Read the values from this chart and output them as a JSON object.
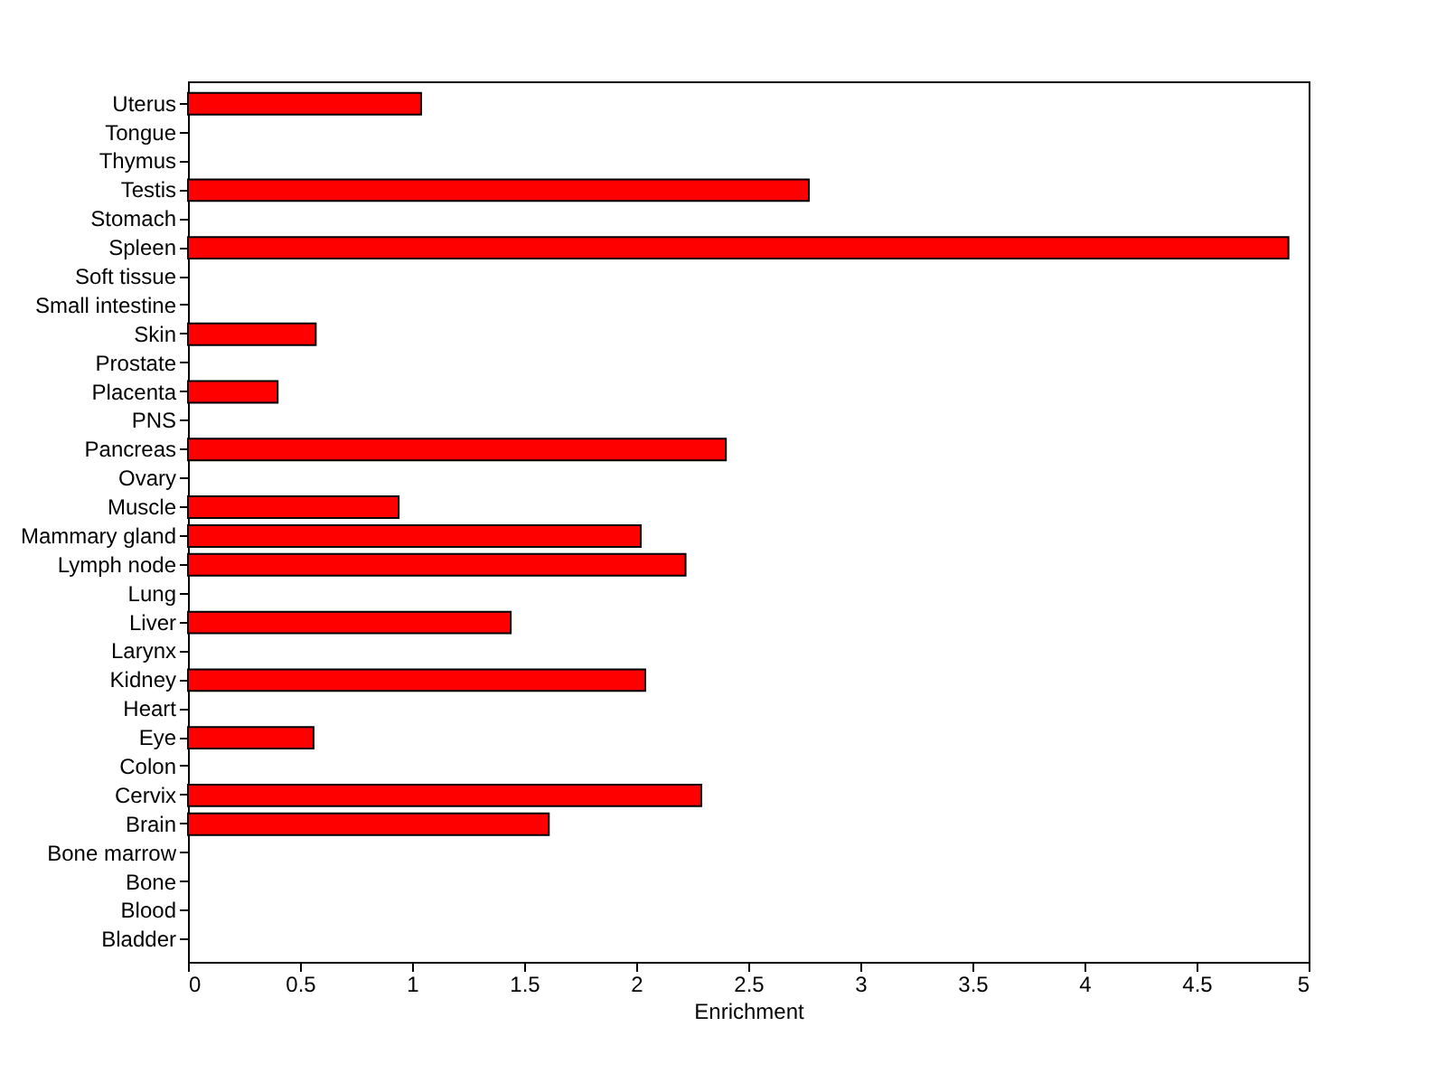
{
  "chart_data": {
    "type": "bar",
    "orientation": "horizontal",
    "xlabel": "Enrichment",
    "categories": [
      "Uterus",
      "Tongue",
      "Thymus",
      "Testis",
      "Stomach",
      "Spleen",
      "Soft tissue",
      "Small intestine",
      "Skin",
      "Prostate",
      "Placenta",
      "PNS",
      "Pancreas",
      "Ovary",
      "Muscle",
      "Mammary gland",
      "Lymph node",
      "Lung",
      "Liver",
      "Larynx",
      "Kidney",
      "Heart",
      "Eye",
      "Colon",
      "Cervix",
      "Brain",
      "Bone marrow",
      "Bone",
      "Blood",
      "Bladder"
    ],
    "values": [
      1.04,
      0,
      0,
      2.77,
      0,
      4.91,
      0,
      0,
      0.57,
      0,
      0.4,
      0,
      2.4,
      0,
      0.94,
      2.02,
      2.22,
      0,
      1.44,
      0,
      2.04,
      0,
      0.56,
      0,
      2.29,
      1.61,
      0,
      0,
      0,
      0
    ],
    "color": "#ff0000",
    "xlim": [
      0,
      5
    ],
    "xticks": [
      0,
      0.5,
      1,
      1.5,
      2,
      2.5,
      3,
      3.5,
      4,
      4.5,
      5
    ],
    "grid": false
  }
}
